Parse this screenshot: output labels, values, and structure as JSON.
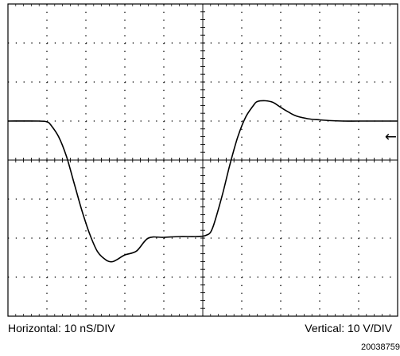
{
  "captions": {
    "horizontal": "Horizontal: 10 nS/DIV",
    "vertical": "Vertical: 10 V/DIV",
    "figure_id": "20038759"
  },
  "chart_data": {
    "type": "line",
    "title": "",
    "xlabel": "Horizontal: 10 nS/DIV",
    "ylabel": "Vertical: 10 V/DIV",
    "x_unit": "ns",
    "y_unit": "V",
    "xlim": [
      -50,
      50
    ],
    "ylim": [
      -40,
      40
    ],
    "grid": true,
    "x_divisions": 10,
    "y_divisions": 8,
    "reference_marker": {
      "symbol": "←",
      "y": 6
    },
    "series": [
      {
        "x": [
          -50,
          -42,
          -40,
          -39,
          -37,
          -35,
          -33,
          -31,
          -29,
          -27,
          -25,
          -24,
          -23,
          -22,
          -20,
          -17,
          -14,
          -10,
          -6,
          -2,
          0,
          1,
          2,
          3,
          5,
          7,
          9,
          11,
          13,
          14,
          16,
          18,
          20,
          22,
          24,
          27,
          30,
          33,
          36,
          40,
          44,
          50
        ],
        "y": [
          10,
          10,
          9.8,
          9,
          6,
          1,
          -6,
          -13,
          -19,
          -23.5,
          -25.5,
          -26,
          -26,
          -25.5,
          -24.3,
          -23.3,
          -20,
          -19.8,
          -19.6,
          -19.6,
          -19.5,
          -19.2,
          -18.5,
          -16,
          -9,
          -1,
          6,
          11,
          14,
          15,
          15.2,
          14.8,
          13.5,
          12.3,
          11.3,
          10.6,
          10.3,
          10.1,
          10,
          10,
          10,
          10
        ]
      }
    ]
  }
}
